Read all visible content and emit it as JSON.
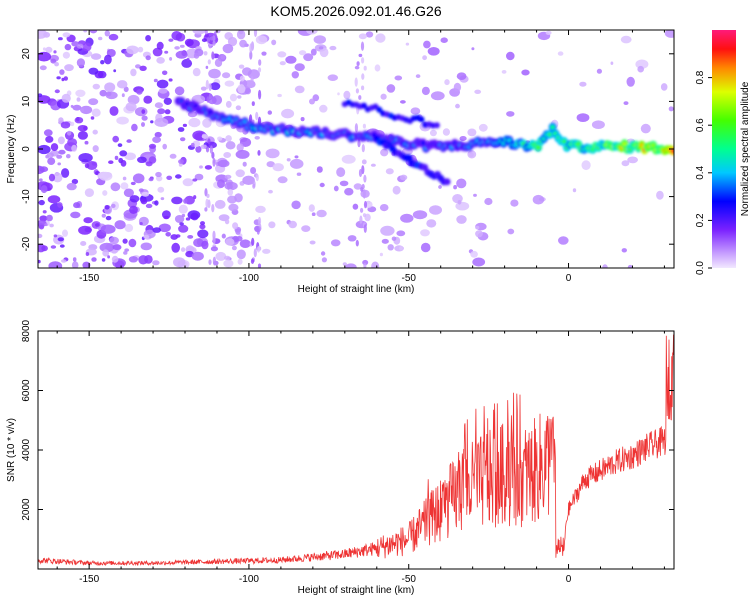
{
  "title": "KOM5.2026.092.01.46.G26",
  "chart_data": [
    {
      "type": "heatmap",
      "name": "spectrogram",
      "xlabel": "Height of straight line (km)",
      "ylabel": "Frequency (Hz)",
      "xlim": [
        -166,
        33
      ],
      "ylim": [
        -25,
        25
      ],
      "xticks": [
        -150,
        -100,
        -50,
        0
      ],
      "yticks": [
        -20,
        -10,
        0,
        10,
        20
      ],
      "colorbar": {
        "label": "Normalized spectral amplitude",
        "range": [
          0,
          1
        ],
        "ticks": [
          "0.0",
          "0.2",
          "0.4",
          "0.6",
          "0.8"
        ],
        "tick_values": [
          0,
          0.2,
          0.4,
          0.6,
          0.8
        ]
      },
      "ridge": {
        "description": "dominant frequency trace",
        "x": [
          -122,
          -110,
          -100,
          -90,
          -80,
          -70,
          -60,
          -50,
          -40,
          -30,
          -25,
          -20,
          -10,
          -5,
          0,
          10,
          20,
          33
        ],
        "freq": [
          10,
          7,
          5,
          4,
          3.5,
          3,
          2.5,
          1,
          0.5,
          1,
          1.5,
          1.5,
          0.5,
          4,
          0.5,
          0.5,
          0.5,
          0
        ],
        "amplitude": [
          0.3,
          0.35,
          0.4,
          0.4,
          0.4,
          0.4,
          0.35,
          0.35,
          0.35,
          0.35,
          0.4,
          0.45,
          0.6,
          0.5,
          0.6,
          0.65,
          0.75,
          0.9
        ]
      }
    },
    {
      "type": "line",
      "name": "snr",
      "xlabel": "Height of straight line (km)",
      "ylabel": "SNR (10 * v/v)",
      "xlim": [
        -166,
        33
      ],
      "ylim": [
        0,
        8000
      ],
      "xticks": [
        -150,
        -100,
        -50,
        0
      ],
      "yticks": [
        2000,
        4000,
        6000,
        8000
      ],
      "color": "#ee3333",
      "x": [
        -166,
        -150,
        -130,
        -110,
        -90,
        -70,
        -60,
        -50,
        -45,
        -40,
        -35,
        -30,
        -25,
        -20,
        -15,
        -10,
        -6,
        -4,
        -2,
        0,
        5,
        10,
        15,
        20,
        25,
        30,
        31,
        32,
        33
      ],
      "y": [
        300,
        200,
        200,
        250,
        300,
        500,
        700,
        1000,
        1500,
        2000,
        2500,
        2800,
        3000,
        3200,
        3100,
        3300,
        3700,
        2500,
        800,
        2000,
        3000,
        3300,
        3600,
        3800,
        4100,
        4300,
        4500,
        6800,
        7500
      ]
    }
  ]
}
